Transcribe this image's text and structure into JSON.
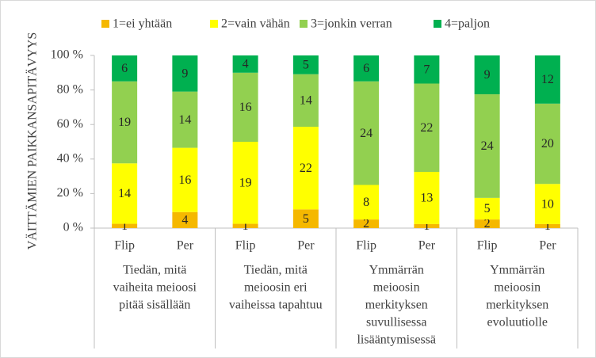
{
  "chart_data": {
    "type": "bar",
    "stacked": "percent",
    "y_label": "VÄITTÄMIEN PAIKKANSAPITÄVYYS",
    "categories": [
      "Flip",
      "Per",
      "Flip",
      "Per",
      "Flip",
      "Per",
      "Flip",
      "Per"
    ],
    "groups": [
      [
        "Tiedän, mitä",
        "vaiheita meioosi",
        "pitää sisällään"
      ],
      [
        "Tiedän, mitä",
        "meioosin eri",
        "vaiheissa tapahtuu"
      ],
      [
        "Ymmärrän",
        "meioosin",
        "merkityksen",
        "suvullisessa",
        "lisääntymisessä"
      ],
      [
        "Ymmärrän",
        "meioosin",
        "merkityksen",
        "evoluutiolle"
      ]
    ],
    "series": [
      {
        "name": "1=ei yhtään",
        "color": "#f5b800",
        "values": [
          1,
          4,
          1,
          5,
          2,
          1,
          2,
          1
        ]
      },
      {
        "name": "2=vain vähän",
        "color": "#ffff00",
        "values": [
          14,
          16,
          19,
          22,
          8,
          13,
          5,
          10
        ]
      },
      {
        "name": "3=jonkin verran",
        "color": "#92d050",
        "values": [
          19,
          14,
          16,
          14,
          24,
          22,
          24,
          20
        ]
      },
      {
        "name": "4=paljon",
        "color": "#00b050",
        "values": [
          6,
          9,
          4,
          5,
          6,
          7,
          9,
          12
        ]
      }
    ],
    "ylim": [
      0,
      100
    ],
    "yticks": [
      {
        "value": 0,
        "label": "0 %"
      },
      {
        "value": 20,
        "label": "20 %"
      },
      {
        "value": 40,
        "label": "40 %"
      },
      {
        "value": 60,
        "label": "60 %"
      },
      {
        "value": 80,
        "label": "80 %"
      },
      {
        "value": 100,
        "label": "100 %"
      }
    ],
    "legend": "top"
  }
}
